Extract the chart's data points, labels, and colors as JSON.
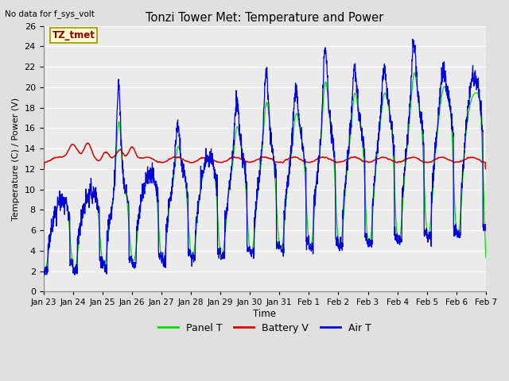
{
  "title": "Tonzi Tower Met: Temperature and Power",
  "subtitle": "No data for f_sys_volt",
  "xlabel": "Time",
  "ylabel": "Temperature (C) / Power (V)",
  "ylim": [
    0,
    26
  ],
  "yticks": [
    0,
    2,
    4,
    6,
    8,
    10,
    12,
    14,
    16,
    18,
    20,
    22,
    24,
    26
  ],
  "xtick_labels": [
    "Jan 23",
    "Jan 24",
    "Jan 25",
    "Jan 26",
    "Jan 27",
    "Jan 28",
    "Jan 29",
    "Jan 30",
    "Jan 31",
    "Feb 1",
    "Feb 2",
    "Feb 3",
    "Feb 4",
    "Feb 5",
    "Feb 6",
    "Feb 7"
  ],
  "panel_t_color": "#00dd00",
  "battery_v_color": "#dd0000",
  "air_t_color": "#0000dd",
  "fig_color": "#e0e0e0",
  "plot_bg_color": "#ebebeb",
  "grid_color": "#ffffff",
  "legend_box_facecolor": "#ffffcc",
  "legend_box_edgecolor": "#999900",
  "legend_label": "TZ_tmet",
  "legend_text_color": "#880000"
}
